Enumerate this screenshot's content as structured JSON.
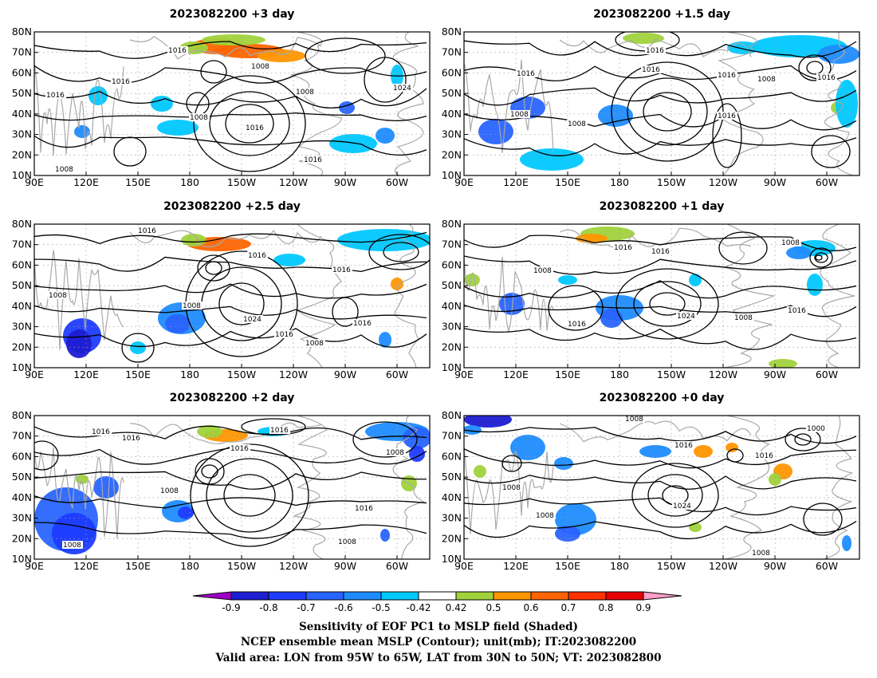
{
  "panels": [
    {
      "title": "2023082200  +3 day",
      "contour_labels": [
        "1016",
        "1016",
        "1016",
        "1008",
        "1008",
        "1008",
        "1016",
        "1024",
        "1016",
        "1008"
      ]
    },
    {
      "title": "2023082200  +1.5 day",
      "contour_labels": [
        "1016",
        "1016",
        "1016",
        "1016",
        "1008",
        "1016",
        "1008",
        "1008",
        "1016"
      ]
    },
    {
      "title": "2023082200  +2.5 day",
      "contour_labels": [
        "1016",
        "1016",
        "1016",
        "1008",
        "1008",
        "1024",
        "1016",
        "1016",
        "1008"
      ]
    },
    {
      "title": "2023082200  +1 day",
      "contour_labels": [
        "1016",
        "1016",
        "1008",
        "1008",
        "1016",
        "1024",
        "1008",
        "1016"
      ]
    },
    {
      "title": "2023082200  +2 day",
      "contour_labels": [
        "1016",
        "1016",
        "1016",
        "1016",
        "1008",
        "1008",
        "1016",
        "1008",
        "1008"
      ]
    },
    {
      "title": "2023082200  +0 day",
      "contour_labels": [
        "1008",
        "1000",
        "1016",
        "1016",
        "1008",
        "1008",
        "1024",
        "1008"
      ]
    }
  ],
  "axes": {
    "lon_ticks": [
      "90E",
      "120E",
      "150E",
      "180",
      "150W",
      "120W",
      "90W",
      "60W"
    ],
    "lat_ticks": [
      "10N",
      "20N",
      "30N",
      "40N",
      "50N",
      "60N",
      "70N",
      "80N"
    ]
  },
  "colorbar": {
    "labels": [
      "-0.9",
      "-0.8",
      "-0.7",
      "-0.6",
      "-0.5",
      "-0.42",
      "0.42",
      "0.5",
      "0.6",
      "0.7",
      "0.8",
      "0.9"
    ],
    "colors": [
      "#a000c8",
      "#1e1ed2",
      "#1e3cff",
      "#2864ff",
      "#1e8cff",
      "#00c8ff",
      "#ffffff",
      "#a0d23c",
      "#ff9600",
      "#ff6400",
      "#ff3200",
      "#e60000",
      "#ff9ec8"
    ]
  },
  "caption": {
    "line1": "Sensitivity of EOF PC1 to MSLP field (Shaded)",
    "line2": "NCEP ensemble mean MSLP (Contour); unit(mb); IT:2023082200",
    "line3": "Valid area: LON from 95W to 65W, LAT from 30N to 50N; VT: 2023082800"
  }
}
